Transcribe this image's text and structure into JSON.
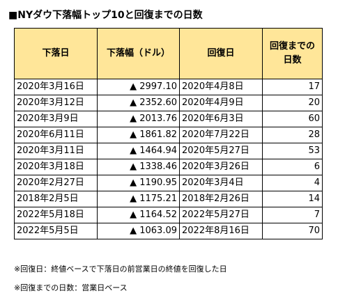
{
  "title": "■NYダウ下落幅トップ10と回復までの日数",
  "table": {
    "headers": {
      "date": "下落日",
      "drop": "下落幅（ドル）",
      "recovery_date": "回復日",
      "days_line1": "回復までの",
      "days_line2": "日数"
    },
    "rows": [
      {
        "date": "2020年3月16日",
        "drop": "▲ 2997.10",
        "recovery_date": "2020年4月8日",
        "days": "17"
      },
      {
        "date": "2020年3月12日",
        "drop": "▲ 2352.60",
        "recovery_date": "2020年4月9日",
        "days": "20"
      },
      {
        "date": "2020年3月9日",
        "drop": "▲ 2013.76",
        "recovery_date": "2020年6月3日",
        "days": "60"
      },
      {
        "date": "2020年6月11日",
        "drop": "▲ 1861.82",
        "recovery_date": "2020年7月22日",
        "days": "28"
      },
      {
        "date": "2020年3月11日",
        "drop": "▲ 1464.94",
        "recovery_date": "2020年5月27日",
        "days": "53"
      },
      {
        "date": "2020年3月18日",
        "drop": "▲ 1338.46",
        "recovery_date": "2020年3月26日",
        "days": "6"
      },
      {
        "date": "2020年2月27日",
        "drop": "▲ 1190.95",
        "recovery_date": "2020年3月4日",
        "days": "4"
      },
      {
        "date": "2018年2月5日",
        "drop": "▲ 1175.21",
        "recovery_date": "2018年2月26日",
        "days": "14"
      },
      {
        "date": "2022年5月18日",
        "drop": "▲ 1164.52",
        "recovery_date": "2022年5月27日",
        "days": "7"
      },
      {
        "date": "2022年5月5日",
        "drop": "▲ 1063.09",
        "recovery_date": "2022年8月16日",
        "days": "70"
      }
    ],
    "header_color": "#FFE699"
  },
  "notes": [
    "※回復日：終値ベースで下落日の前営業日の終値を回復した日",
    "※回復までの日数：営業日ベース"
  ]
}
